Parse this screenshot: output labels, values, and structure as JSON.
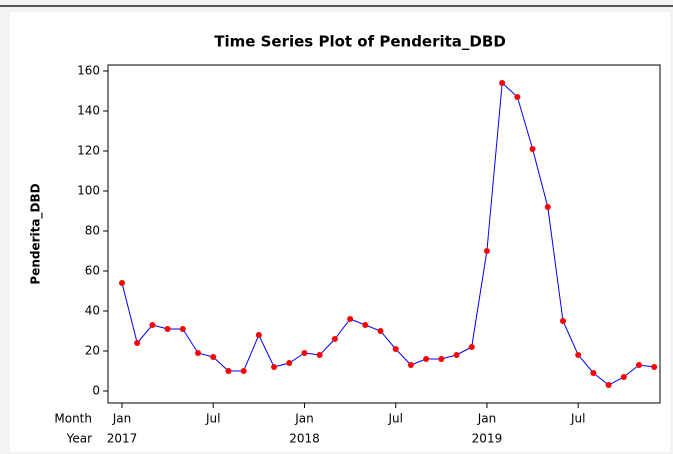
{
  "chart_data": {
    "type": "line",
    "title": "Time Series Plot of Penderita_DBD",
    "y_label": "Penderita_DBD",
    "x_row_labels": [
      "Month",
      "Year"
    ],
    "categories": [
      "Jan",
      null,
      null,
      null,
      null,
      null,
      "Jul",
      null,
      null,
      null,
      null,
      null,
      "Jan",
      null,
      null,
      null,
      null,
      null,
      "Jul",
      null,
      null,
      null,
      null,
      null,
      "Jan",
      null,
      null,
      null,
      null,
      null,
      "Jul",
      null,
      null,
      null,
      null,
      null
    ],
    "years": [
      "2017",
      null,
      null,
      null,
      null,
      null,
      null,
      null,
      null,
      null,
      null,
      null,
      "2018",
      null,
      null,
      null,
      null,
      null,
      null,
      null,
      null,
      null,
      null,
      null,
      "2019",
      null,
      null,
      null,
      null,
      null,
      null,
      null,
      null,
      null,
      null,
      null
    ],
    "series": [
      {
        "name": "Penderita_DBD",
        "color": "#0000ff",
        "marker_color": "#ff0000",
        "values": [
          54,
          24,
          33,
          31,
          31,
          19,
          17,
          10,
          10,
          28,
          12,
          14,
          19,
          18,
          26,
          36,
          33,
          30,
          21,
          13,
          16,
          16,
          18,
          22,
          70,
          154,
          147,
          121,
          92,
          35,
          18,
          9,
          3,
          7,
          13,
          12
        ]
      }
    ],
    "ylim": [
      -6,
      163
    ],
    "yticks": [
      0,
      20,
      40,
      60,
      80,
      100,
      120,
      140,
      160
    ],
    "grid": false
  }
}
